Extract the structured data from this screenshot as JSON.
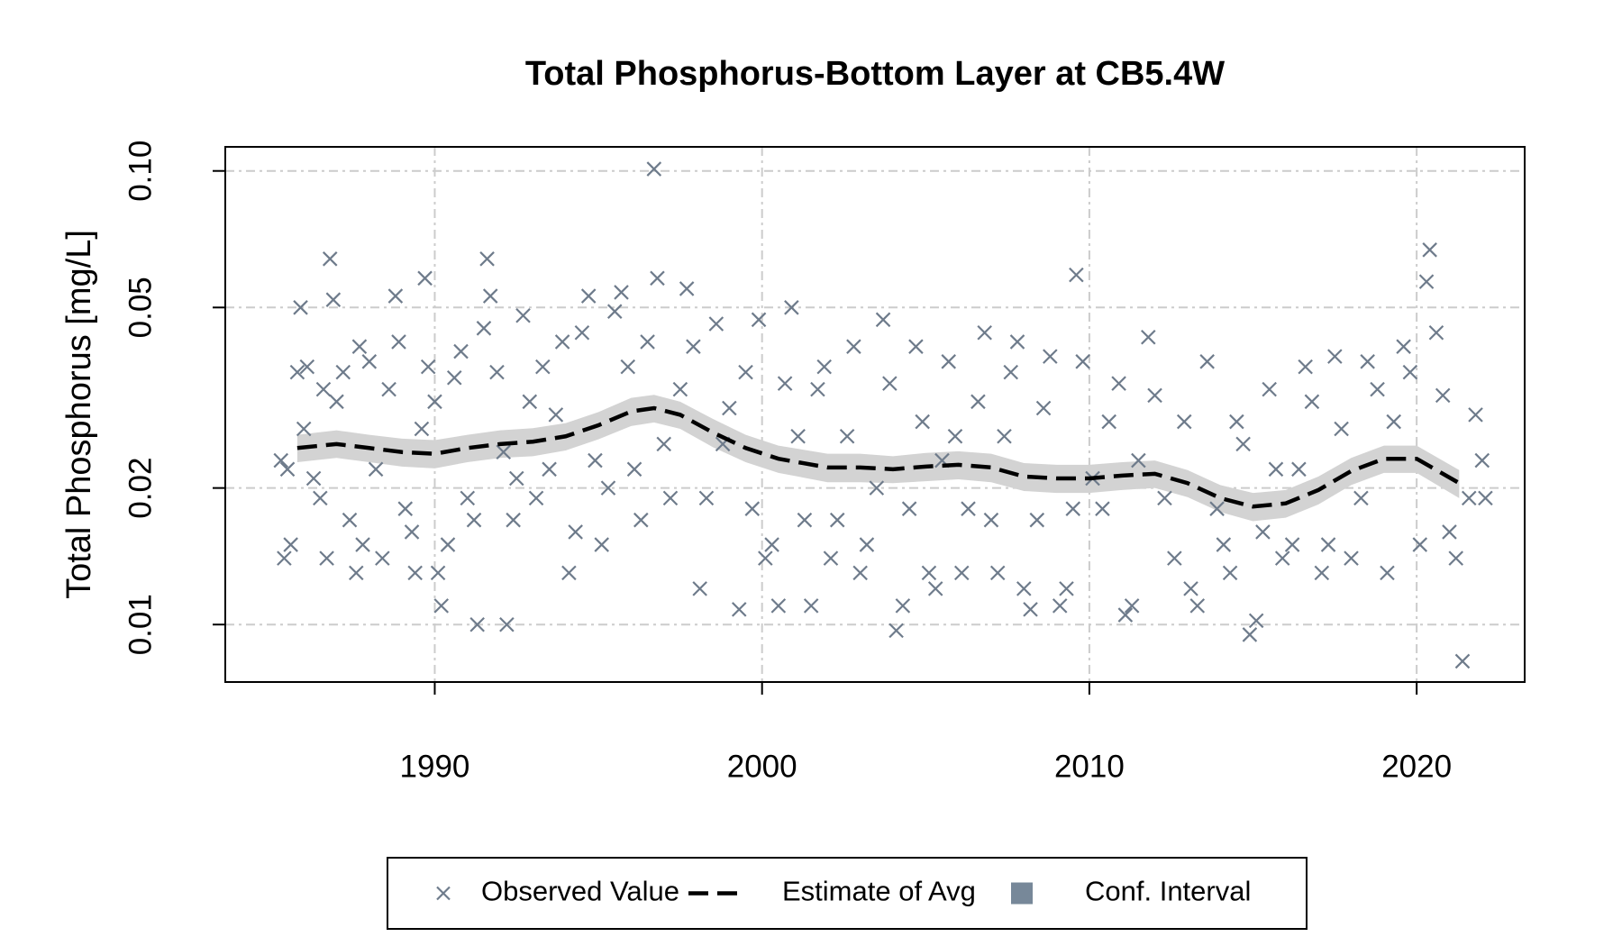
{
  "chart_data": {
    "type": "scatter",
    "title": "Total Phosphorus-Bottom Layer at CB5.4W",
    "y_label": "Total Phosphorus [mg/L]",
    "xlim": [
      1983.6,
      2023.3
    ],
    "ylim": [
      0.00747,
      0.113
    ],
    "y_scale": "log",
    "xticks": [
      1990,
      2000,
      2010,
      2020
    ],
    "yticks": [
      0.01,
      0.02,
      0.05,
      {
        "value": 0.1,
        "label": "0.10"
      }
    ],
    "grid": true,
    "legend": "bottom",
    "series": [
      {
        "name": "Observed Value",
        "type": "scatter",
        "color": "#6e7b8b",
        "x": [
          1985.3,
          1985.4,
          1985.5,
          1985.6,
          1985.8,
          1985.9,
          1986.0,
          1986.1,
          1986.3,
          1986.5,
          1986.6,
          1986.7,
          1986.8,
          1986.9,
          1987.0,
          1987.2,
          1987.4,
          1987.6,
          1987.7,
          1987.8,
          1988.0,
          1988.2,
          1988.4,
          1988.6,
          1988.8,
          1988.9,
          1989.1,
          1989.3,
          1989.4,
          1989.6,
          1989.7,
          1989.8,
          1990.0,
          1990.1,
          1990.2,
          1990.4,
          1990.6,
          1990.8,
          1991.0,
          1991.2,
          1991.3,
          1991.5,
          1991.6,
          1991.7,
          1991.9,
          1992.1,
          1992.2,
          1992.4,
          1992.5,
          1992.7,
          1992.9,
          1993.1,
          1993.3,
          1993.5,
          1993.7,
          1993.9,
          1994.1,
          1994.3,
          1994.5,
          1994.7,
          1994.9,
          1995.1,
          1995.3,
          1995.5,
          1995.7,
          1995.9,
          1996.1,
          1996.3,
          1996.5,
          1996.7,
          1996.8,
          1997.0,
          1997.2,
          1997.5,
          1997.7,
          1997.9,
          1998.1,
          1998.3,
          1998.6,
          1998.8,
          1999.0,
          1999.3,
          1999.5,
          1999.7,
          1999.9,
          2000.1,
          2000.3,
          2000.5,
          2000.7,
          2000.9,
          2001.1,
          2001.3,
          2001.5,
          2001.7,
          2001.9,
          2002.1,
          2002.3,
          2002.6,
          2002.8,
          2003.0,
          2003.2,
          2003.5,
          2003.7,
          2003.9,
          2004.1,
          2004.3,
          2004.5,
          2004.7,
          2004.9,
          2005.1,
          2005.3,
          2005.5,
          2005.7,
          2005.9,
          2006.1,
          2006.3,
          2006.6,
          2006.8,
          2007.0,
          2007.2,
          2007.4,
          2007.6,
          2007.8,
          2008.0,
          2008.2,
          2008.4,
          2008.6,
          2008.8,
          2009.1,
          2009.3,
          2009.5,
          2009.6,
          2009.8,
          2010.1,
          2010.4,
          2010.6,
          2010.9,
          2011.1,
          2011.3,
          2011.5,
          2011.8,
          2012.0,
          2012.3,
          2012.6,
          2012.9,
          2013.1,
          2013.3,
          2013.6,
          2013.9,
          2014.1,
          2014.3,
          2014.5,
          2014.7,
          2014.9,
          2015.1,
          2015.3,
          2015.5,
          2015.7,
          2015.9,
          2016.2,
          2016.4,
          2016.6,
          2016.8,
          2017.1,
          2017.3,
          2017.5,
          2017.7,
          2018.0,
          2018.3,
          2018.5,
          2018.8,
          2019.1,
          2019.3,
          2019.6,
          2019.8,
          2020.1,
          2020.3,
          2020.4,
          2020.6,
          2020.8,
          2021.0,
          2021.2,
          2021.4,
          2021.6,
          2021.8,
          2022.0,
          2022.1
        ],
        "values": [
          0.023,
          0.014,
          0.022,
          0.015,
          0.036,
          0.05,
          0.027,
          0.037,
          0.021,
          0.019,
          0.033,
          0.014,
          0.064,
          0.052,
          0.031,
          0.036,
          0.017,
          0.013,
          0.041,
          0.015,
          0.038,
          0.022,
          0.014,
          0.033,
          0.053,
          0.042,
          0.018,
          0.016,
          0.013,
          0.027,
          0.058,
          0.037,
          0.031,
          0.013,
          0.011,
          0.015,
          0.035,
          0.04,
          0.019,
          0.017,
          0.01,
          0.045,
          0.064,
          0.053,
          0.036,
          0.024,
          0.01,
          0.017,
          0.021,
          0.048,
          0.031,
          0.019,
          0.037,
          0.022,
          0.029,
          0.042,
          0.013,
          0.016,
          0.044,
          0.053,
          0.023,
          0.015,
          0.02,
          0.049,
          0.054,
          0.037,
          0.022,
          0.017,
          0.042,
          0.101,
          0.058,
          0.025,
          0.019,
          0.033,
          0.055,
          0.041,
          0.012,
          0.019,
          0.046,
          0.025,
          0.03,
          0.0108,
          0.036,
          0.018,
          0.047,
          0.014,
          0.015,
          0.011,
          0.034,
          0.05,
          0.026,
          0.017,
          0.011,
          0.033,
          0.037,
          0.014,
          0.017,
          0.026,
          0.041,
          0.013,
          0.015,
          0.02,
          0.047,
          0.034,
          0.0097,
          0.011,
          0.018,
          0.041,
          0.028,
          0.013,
          0.012,
          0.023,
          0.038,
          0.026,
          0.013,
          0.018,
          0.031,
          0.044,
          0.017,
          0.013,
          0.026,
          0.036,
          0.042,
          0.012,
          0.0108,
          0.017,
          0.03,
          0.039,
          0.011,
          0.012,
          0.018,
          0.059,
          0.038,
          0.021,
          0.018,
          0.028,
          0.034,
          0.0105,
          0.011,
          0.023,
          0.043,
          0.032,
          0.019,
          0.014,
          0.028,
          0.012,
          0.011,
          0.038,
          0.018,
          0.015,
          0.013,
          0.028,
          0.025,
          0.0095,
          0.0102,
          0.016,
          0.033,
          0.022,
          0.014,
          0.015,
          0.022,
          0.037,
          0.031,
          0.013,
          0.015,
          0.039,
          0.027,
          0.014,
          0.019,
          0.038,
          0.033,
          0.013,
          0.028,
          0.041,
          0.036,
          0.015,
          0.057,
          0.067,
          0.044,
          0.032,
          0.016,
          0.014,
          0.0083,
          0.019,
          0.029,
          0.023,
          0.019
        ]
      },
      {
        "name": "Estimate of Avg",
        "type": "line",
        "color": "#000000",
        "x": [
          1985.8,
          1987,
          1988,
          1989,
          1990,
          1991,
          1992,
          1993,
          1994,
          1995,
          1996,
          1996.7,
          1997.5,
          1998.5,
          1999.5,
          2000.5,
          2002,
          2003,
          2004,
          2005,
          2006,
          2007,
          2008,
          2009,
          2010,
          2011,
          2012,
          2013,
          2014,
          2015,
          2016,
          2017,
          2018,
          2019,
          2020,
          2021.3
        ],
        "values": [
          0.0245,
          0.025,
          0.0245,
          0.024,
          0.0238,
          0.0245,
          0.025,
          0.0253,
          0.026,
          0.0275,
          0.0295,
          0.03,
          0.029,
          0.0265,
          0.0245,
          0.0232,
          0.0222,
          0.0222,
          0.022,
          0.0223,
          0.0225,
          0.0222,
          0.0212,
          0.021,
          0.021,
          0.0213,
          0.0215,
          0.0205,
          0.019,
          0.0182,
          0.0185,
          0.0198,
          0.0218,
          0.0232,
          0.0232,
          0.0205
        ]
      },
      {
        "name": "Conf. Interval",
        "type": "band",
        "color": "#d3d3d3",
        "legend_color": "#778899",
        "x": [
          1985.8,
          1987,
          1988,
          1989,
          1990,
          1991,
          1992,
          1993,
          1994,
          1995,
          1996,
          1996.7,
          1997.5,
          1998.5,
          1999.5,
          2000.5,
          2002,
          2003,
          2004,
          2005,
          2006,
          2007,
          2008,
          2009,
          2010,
          2011,
          2012,
          2013,
          2014,
          2015,
          2016,
          2017,
          2018,
          2019,
          2020,
          2021.3
        ],
        "lower": [
          0.0228,
          0.0233,
          0.0228,
          0.0223,
          0.0221,
          0.0228,
          0.0233,
          0.0235,
          0.0242,
          0.0256,
          0.0274,
          0.0279,
          0.027,
          0.0246,
          0.0228,
          0.0216,
          0.0206,
          0.0206,
          0.0205,
          0.0207,
          0.0209,
          0.0206,
          0.0197,
          0.0195,
          0.0195,
          0.0198,
          0.02,
          0.0191,
          0.0177,
          0.0169,
          0.0172,
          0.0184,
          0.0203,
          0.0216,
          0.0216,
          0.019
        ],
        "upper": [
          0.0262,
          0.0268,
          0.0262,
          0.0257,
          0.0255,
          0.0262,
          0.0268,
          0.0271,
          0.0278,
          0.0294,
          0.0316,
          0.0321,
          0.031,
          0.0284,
          0.0262,
          0.0248,
          0.0238,
          0.0238,
          0.0235,
          0.0239,
          0.0241,
          0.0238,
          0.0227,
          0.0225,
          0.0225,
          0.0228,
          0.023,
          0.0219,
          0.0203,
          0.0195,
          0.0198,
          0.0212,
          0.0233,
          0.0248,
          0.0248,
          0.0219
        ]
      }
    ]
  }
}
